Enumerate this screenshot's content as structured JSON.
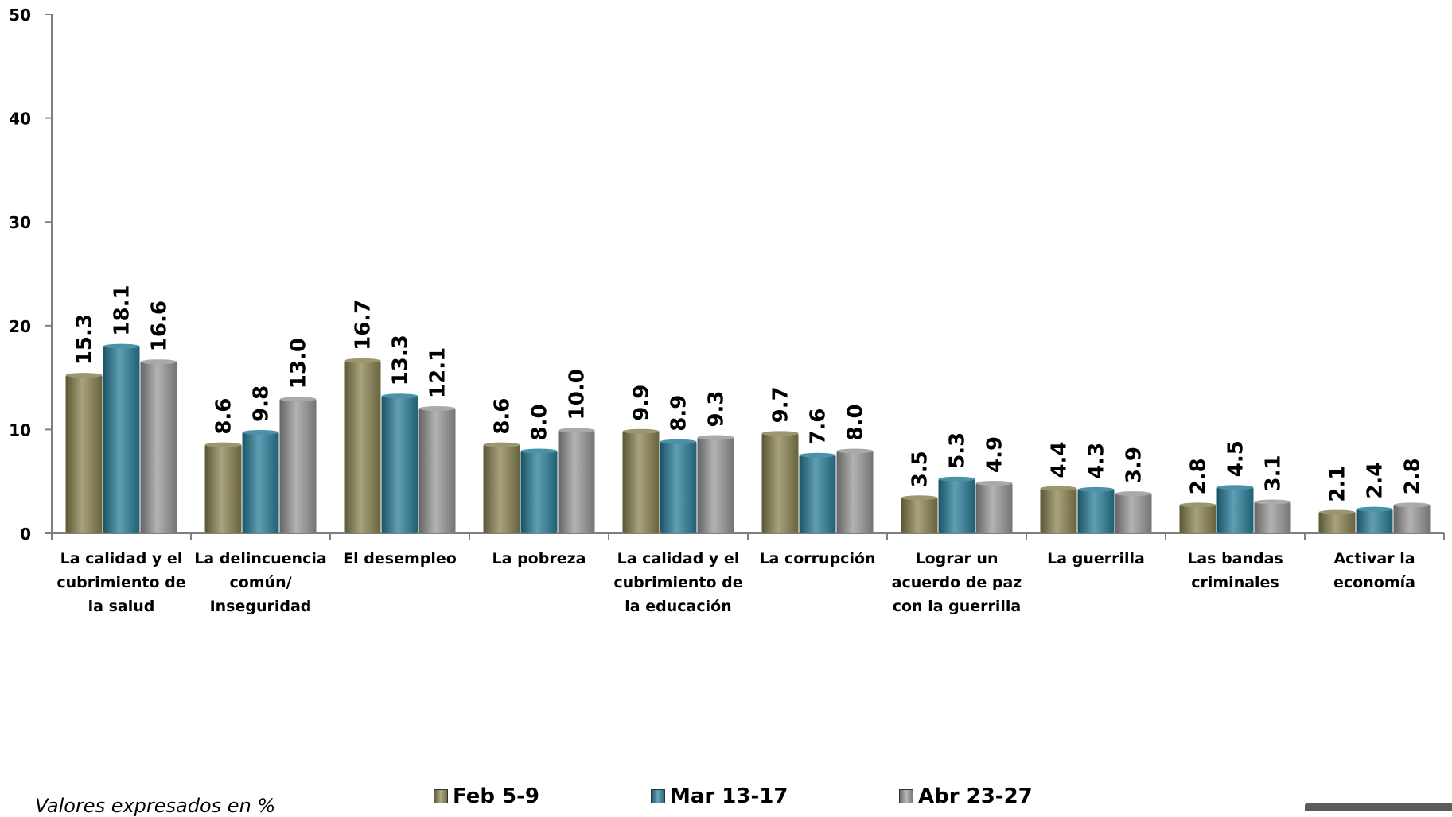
{
  "chart_data": {
    "type": "bar",
    "categories": [
      [
        "La calidad y el",
        "cubrimiento de",
        "la salud"
      ],
      [
        "La delincuencia",
        "común/",
        "Inseguridad"
      ],
      [
        "El desempleo"
      ],
      [
        "La pobreza"
      ],
      [
        "La calidad y el",
        "cubrimiento de",
        "la educación"
      ],
      [
        "La corrupción"
      ],
      [
        "Lograr un",
        "acuerdo de paz",
        "con la guerrilla"
      ],
      [
        "La guerrilla"
      ],
      [
        "Las bandas",
        "criminales"
      ],
      [
        "Activar la",
        "economía"
      ]
    ],
    "series": [
      {
        "name": "Feb 5-9",
        "color": "#8b8452",
        "values": [
          15.3,
          8.6,
          16.7,
          8.6,
          9.9,
          9.7,
          3.5,
          4.4,
          2.8,
          2.1
        ],
        "labels": [
          "15.3",
          "8.6",
          "16.7",
          "8.6",
          "9.9",
          "9.7",
          "3.5",
          "4.4",
          "2.8",
          "2.1"
        ]
      },
      {
        "name": "Mar 13-17",
        "color": "#2a7f9b",
        "values": [
          18.1,
          9.8,
          13.3,
          8.0,
          8.9,
          7.6,
          5.3,
          4.3,
          4.5,
          2.4
        ],
        "labels": [
          "18.1",
          "9.8",
          "13.3",
          "8.0",
          "8.9",
          "7.6",
          "5.3",
          "4.3",
          "4.5",
          "2.4"
        ]
      },
      {
        "name": "Abr 23-27",
        "color": "#9a9a9a",
        "values": [
          16.6,
          13.0,
          12.1,
          10.0,
          9.3,
          8.0,
          4.9,
          3.9,
          3.1,
          2.8
        ],
        "labels": [
          "16.6",
          "13.0",
          "12.1",
          "10.0",
          "9.3",
          "8.0",
          "4.9",
          "3.9",
          "3.1",
          "2.8"
        ]
      }
    ],
    "ylim": [
      0,
      50
    ],
    "yticks": [
      0,
      10,
      20,
      30,
      40,
      50
    ],
    "grid": false,
    "legend_position": "bottom"
  },
  "note": "Valores expresados en %"
}
